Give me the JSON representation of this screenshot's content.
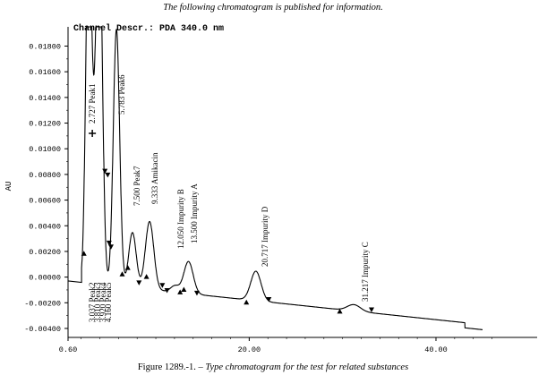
{
  "header_note": "The following chromatogram is published for information.",
  "caption": {
    "prefix": "Figure 1289.-1. – ",
    "text": "Type chromatogram for the test for related substances"
  },
  "chart_data": {
    "type": "line",
    "title": "Channel Descr.: PDA 340.0 nm",
    "xlabel": "",
    "ylabel": "AU",
    "xlim": [
      0.6,
      47.0
    ],
    "ylim": [
      -0.0047,
      0.0195
    ],
    "x_ticks": [
      "0.60",
      "20.00",
      "40.00"
    ],
    "x_tick_values": [
      0.6,
      20.0,
      40.0
    ],
    "y_ticks": [
      "0.01800",
      "0.01600",
      "0.01400",
      "0.01200",
      "0.01000",
      "0.00800",
      "0.00600",
      "0.00400",
      "0.00200",
      "0.00000",
      "-0.00200",
      "-0.00400"
    ],
    "y_tick_values": [
      0.018,
      0.016,
      0.014,
      0.012,
      0.01,
      0.008,
      0.006,
      0.004,
      0.002,
      0.0,
      -0.002,
      -0.004
    ],
    "grid": false,
    "baseline": {
      "start": [
        0.6,
        -0.0003
      ],
      "end": [
        45.0,
        -0.0037
      ],
      "step_at": 43.1,
      "step_drop": -0.0004
    },
    "peaks": [
      {
        "label": "2.727 Peak1",
        "rt": 2.727,
        "height": 0.02,
        "width": 0.28
      },
      {
        "label": "3.037 Peak2",
        "rt": 3.037,
        "height": 0.0125,
        "width": 0.3
      },
      {
        "label": "3.810 Peak3",
        "rt": 3.81,
        "height": 0.015,
        "width": 0.32
      },
      {
        "label": "3.920 Peak4",
        "rt": 3.92,
        "height": 0.011,
        "width": 0.3
      },
      {
        "label": "4.160 Peak5",
        "rt": 4.16,
        "height": 0.007,
        "width": 0.3
      },
      {
        "label": "5.783 Peak6",
        "rt": 5.783,
        "height": 0.02,
        "width": 0.34
      },
      {
        "label": "7.500 Peak7",
        "rt": 7.5,
        "height": 0.0043,
        "width": 0.4
      },
      {
        "label": "9.333 Amikacin",
        "rt": 9.333,
        "height": 0.0053,
        "width": 0.45
      },
      {
        "label": "12.050 Impurity B",
        "rt": 12.05,
        "height": 0.0005,
        "width": 0.45
      },
      {
        "label": "13.500 Impurity A",
        "rt": 13.5,
        "height": 0.0025,
        "width": 0.5
      },
      {
        "label": "20.717 Impurity D",
        "rt": 20.717,
        "height": 0.0023,
        "width": 0.55
      },
      {
        "label": "31.217 Impurity C",
        "rt": 31.217,
        "height": 0.0005,
        "width": 0.7
      }
    ],
    "markers": [
      {
        "x": 2.3,
        "y": 0.0018,
        "dir": "up"
      },
      {
        "x": 3.2,
        "y": 0.0112,
        "dir": "cross"
      },
      {
        "x": 4.55,
        "y": 0.0083,
        "dir": "down"
      },
      {
        "x": 4.85,
        "y": 0.008,
        "dir": "down"
      },
      {
        "x": 5.0,
        "y": 0.0027,
        "dir": "down"
      },
      {
        "x": 5.2,
        "y": 0.0024,
        "dir": "down"
      },
      {
        "x": 6.4,
        "y": 0.0002,
        "dir": "up"
      },
      {
        "x": 7.0,
        "y": 0.0007,
        "dir": "up"
      },
      {
        "x": 8.2,
        "y": -0.0004,
        "dir": "down"
      },
      {
        "x": 9.0,
        "y": 0.0,
        "dir": "up"
      },
      {
        "x": 10.7,
        "y": -0.0006,
        "dir": "down"
      },
      {
        "x": 11.2,
        "y": -0.001,
        "dir": "down"
      },
      {
        "x": 12.6,
        "y": -0.0012,
        "dir": "up"
      },
      {
        "x": 13.0,
        "y": -0.001,
        "dir": "up"
      },
      {
        "x": 14.4,
        "y": -0.0012,
        "dir": "down"
      },
      {
        "x": 19.7,
        "y": -0.002,
        "dir": "up"
      },
      {
        "x": 22.1,
        "y": -0.0017,
        "dir": "down"
      },
      {
        "x": 29.7,
        "y": -0.0027,
        "dir": "up"
      },
      {
        "x": 33.1,
        "y": -0.0025,
        "dir": "down"
      }
    ],
    "curve_color": "#000000"
  }
}
